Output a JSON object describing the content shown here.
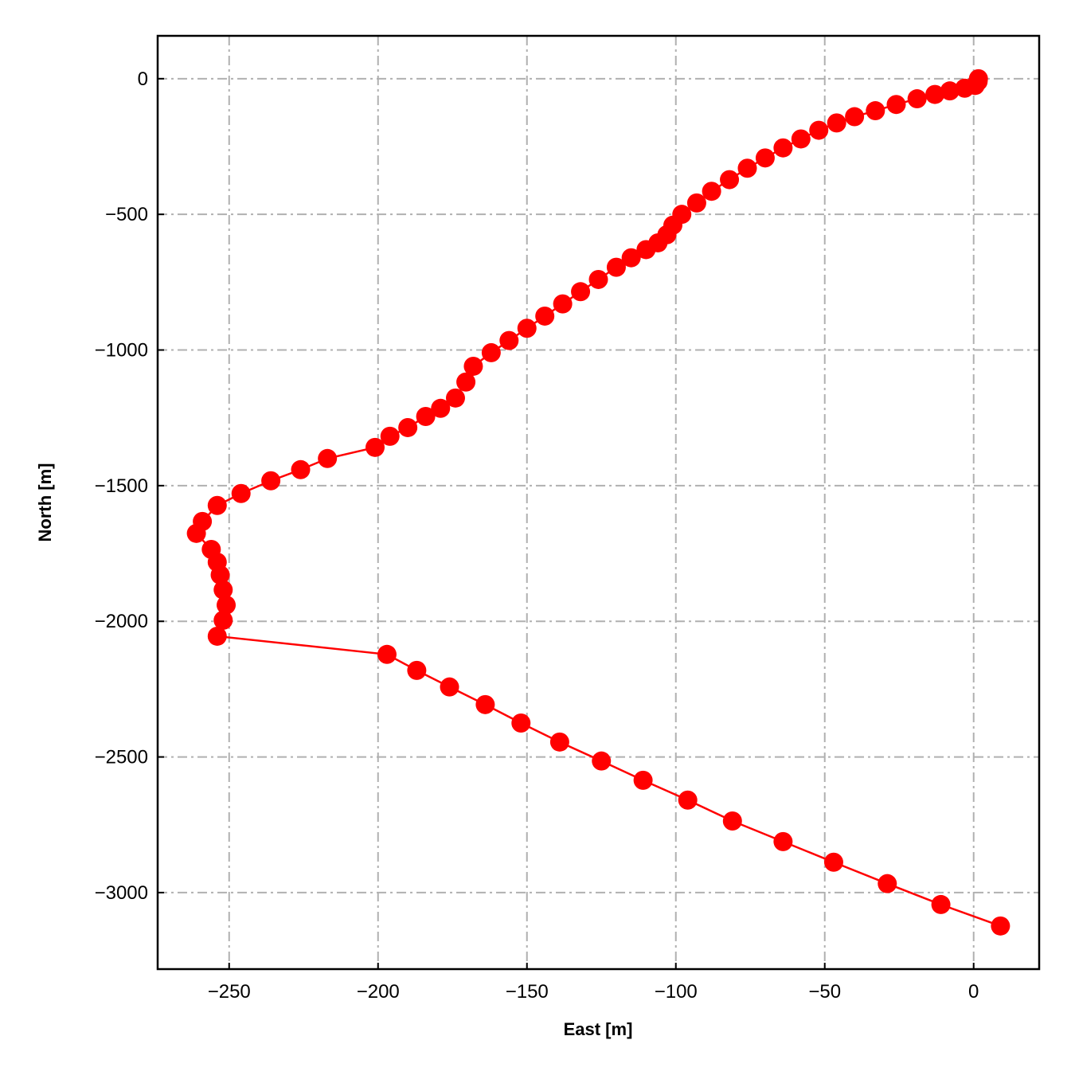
{
  "chart_data": {
    "type": "line",
    "x_label": "East [m]",
    "y_label": "North [m]",
    "x": [
      1.6,
      1.5,
      0.5,
      -3,
      -8,
      -13,
      -19,
      -26,
      -33,
      -40,
      -46,
      -52,
      -58,
      -64,
      -70,
      -76,
      -82,
      -88,
      -93,
      -98,
      -101,
      -103,
      -106,
      -110,
      -115,
      -120,
      -126,
      -132,
      -138,
      -144,
      -150,
      -156,
      -162,
      -168,
      -170.5,
      -174,
      -179,
      -184,
      -190,
      -196,
      -201,
      -217,
      -226,
      -236,
      -246,
      -254,
      -259,
      -261,
      -256,
      -254,
      -253,
      -252,
      -251,
      -252,
      -254,
      -197,
      -187,
      -176,
      -164,
      -152,
      -139,
      -125,
      -111,
      -96,
      -81,
      -64,
      -47,
      -29,
      -11,
      9
    ],
    "values": [
      0,
      -10,
      -25,
      -35,
      -45,
      -58,
      -74,
      -95,
      -118,
      -140,
      -163,
      -190,
      -222,
      -255,
      -292,
      -330,
      -372,
      -415,
      -458,
      -500,
      -540,
      -575,
      -605,
      -630,
      -660,
      -695,
      -740,
      -785,
      -830,
      -875,
      -920,
      -965,
      -1010,
      -1060,
      -1118,
      -1177,
      -1215,
      -1245,
      -1286,
      -1318,
      -1359,
      -1400,
      -1441,
      -1482,
      -1529,
      -1573,
      -1632,
      -1676,
      -1735,
      -1782,
      -1829,
      -1884,
      -1940,
      -1996,
      -2055,
      -2122,
      -2181,
      -2242,
      -2307,
      -2375,
      -2445,
      -2515,
      -2586,
      -2659,
      -2736,
      -2812,
      -2888,
      -2967,
      -3044,
      -3123
    ],
    "color": "#ff0000",
    "xlim": [
      -274,
      22
    ],
    "ylim": [
      -3282,
      158
    ],
    "xticks": [
      {
        "value": -250,
        "label": "−250"
      },
      {
        "value": -200,
        "label": "−200"
      },
      {
        "value": -150,
        "label": "−150"
      },
      {
        "value": -100,
        "label": "−100"
      },
      {
        "value": -50,
        "label": "−50"
      },
      0
    ],
    "yticks": [
      0,
      {
        "value": -500,
        "label": "−500"
      },
      {
        "value": -1000,
        "label": "−1000"
      },
      {
        "value": -1500,
        "label": "−1500"
      },
      {
        "value": -2000,
        "label": "−2000"
      },
      {
        "value": -2500,
        "label": "−2500"
      },
      {
        "value": -3000,
        "label": "−3000"
      }
    ],
    "grid": true
  }
}
